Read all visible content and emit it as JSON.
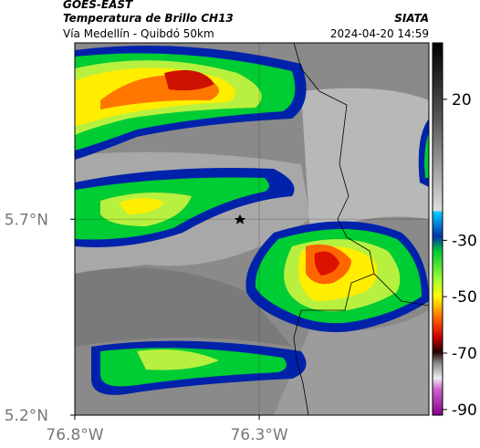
{
  "header": {
    "title": "GOES-EAST",
    "subtitle": "Temperatura de Brillo CH13",
    "source": "SIATA",
    "region": "Vía Medellín - Quibdó 50km",
    "timestamp": "2024-04-20 14:59"
  },
  "map": {
    "xlim": [
      -76.8,
      -75.84
    ],
    "ylim": [
      5.2,
      6.15
    ],
    "xticks": [
      {
        "value": -76.8,
        "label": "76.8°W"
      },
      {
        "value": -76.3,
        "label": "76.3°W"
      }
    ],
    "yticks": [
      {
        "value": 5.2,
        "label": "5.2°N"
      },
      {
        "value": 5.7,
        "label": "5.7°N"
      }
    ],
    "grid": true
  },
  "colorbar": {
    "lim": [
      -92,
      40
    ],
    "ticks": [
      20,
      -30,
      -50,
      -70,
      -90
    ]
  }
}
